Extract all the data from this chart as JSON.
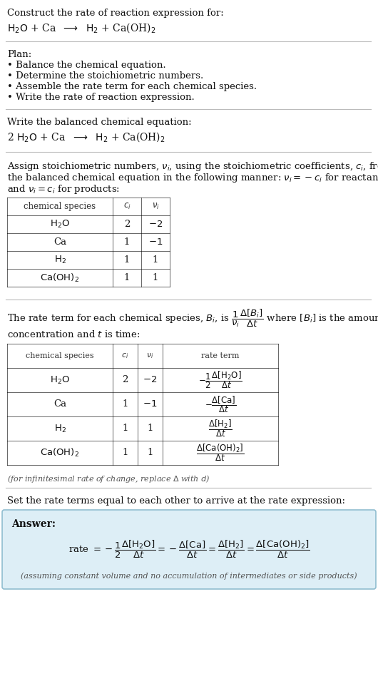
{
  "bg_color": "#ffffff",
  "text_color": "#111111",
  "answer_bg": "#ddeef6",
  "answer_border": "#90bdd0",
  "separator_color": "#bbbbbb",
  "title_text": "Construct the rate of reaction expression for:",
  "plan_header": "Plan:",
  "plan_items": [
    "• Balance the chemical equation.",
    "• Determine the stoichiometric numbers.",
    "• Assemble the rate term for each chemical species.",
    "• Write the rate of reaction expression."
  ],
  "balanced_header": "Write the balanced chemical equation:",
  "rate_expr_intro": "Set the rate terms equal to each other to arrive at the rate expression:",
  "answer_label": "Answer:",
  "answer_note": "(assuming constant volume and no accumulation of intermediates or side products)",
  "fs_main": 9.5,
  "fs_small": 8.0
}
